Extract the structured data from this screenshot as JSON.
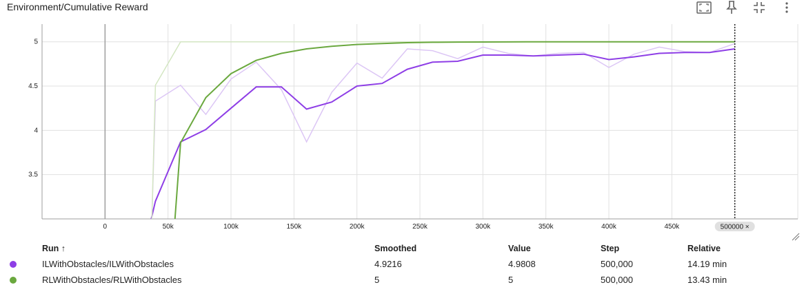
{
  "title": "Environment/Cumulative Reward",
  "icons": [
    "fit-domain-icon",
    "pin-icon",
    "collapse-icon",
    "more-vert-icon"
  ],
  "colors": {
    "series_il": "#8e3ee6",
    "series_il_raw": "#dcc6f5",
    "series_rl": "#6aa83e",
    "series_rl_raw": "#d3e6c2",
    "grid": "#e0e0e0"
  },
  "chart_data": {
    "type": "line",
    "xlim": [
      -50000,
      550000
    ],
    "ylim": [
      3,
      5.2
    ],
    "x_ticks": [
      "0",
      "50k",
      "100k",
      "150k",
      "200k",
      "250k",
      "300k",
      "350k",
      "400k",
      "450k"
    ],
    "y_ticks": [
      "3.5",
      "4",
      "4.5",
      "5"
    ],
    "grid": true,
    "hover_step_label": "500000 ×",
    "series": [
      {
        "name": "ILWithObstacles/ILWithObstacles",
        "smoothed": [
          [
            40000,
            3.2
          ],
          [
            60000,
            3.87
          ],
          [
            80000,
            4.01
          ],
          [
            100000,
            4.25
          ],
          [
            120000,
            4.49
          ],
          [
            140000,
            4.49
          ],
          [
            160000,
            4.24
          ],
          [
            180000,
            4.32
          ],
          [
            200000,
            4.5
          ],
          [
            220000,
            4.53
          ],
          [
            240000,
            4.69
          ],
          [
            260000,
            4.77
          ],
          [
            280000,
            4.78
          ],
          [
            300000,
            4.85
          ],
          [
            320000,
            4.85
          ],
          [
            340000,
            4.84
          ],
          [
            360000,
            4.85
          ],
          [
            380000,
            4.86
          ],
          [
            400000,
            4.8
          ],
          [
            420000,
            4.83
          ],
          [
            440000,
            4.87
          ],
          [
            460000,
            4.88
          ],
          [
            480000,
            4.88
          ],
          [
            500000,
            4.92
          ]
        ],
        "values": [
          [
            40000,
            4.33
          ],
          [
            60000,
            4.51
          ],
          [
            80000,
            4.18
          ],
          [
            100000,
            4.58
          ],
          [
            120000,
            4.77
          ],
          [
            140000,
            4.46
          ],
          [
            160000,
            3.87
          ],
          [
            180000,
            4.43
          ],
          [
            200000,
            4.76
          ],
          [
            220000,
            4.59
          ],
          [
            240000,
            4.92
          ],
          [
            260000,
            4.9
          ],
          [
            280000,
            4.81
          ],
          [
            300000,
            4.94
          ],
          [
            320000,
            4.87
          ],
          [
            340000,
            4.84
          ],
          [
            360000,
            4.87
          ],
          [
            380000,
            4.88
          ],
          [
            400000,
            4.71
          ],
          [
            420000,
            4.86
          ],
          [
            440000,
            4.94
          ],
          [
            460000,
            4.89
          ],
          [
            480000,
            4.88
          ],
          [
            500000,
            4.98
          ]
        ]
      },
      {
        "name": "RLWithObstacles/RLWithObstacles",
        "smoothed": [
          [
            60000,
            3.86
          ],
          [
            80000,
            4.37
          ],
          [
            100000,
            4.64
          ],
          [
            120000,
            4.79
          ],
          [
            140000,
            4.87
          ],
          [
            160000,
            4.92
          ],
          [
            180000,
            4.95
          ],
          [
            200000,
            4.97
          ],
          [
            220000,
            4.98
          ],
          [
            240000,
            4.99
          ],
          [
            260000,
            4.995
          ],
          [
            280000,
            4.997
          ],
          [
            300000,
            4.998
          ],
          [
            320000,
            4.999
          ],
          [
            340000,
            5
          ],
          [
            360000,
            5
          ],
          [
            380000,
            5
          ],
          [
            400000,
            5
          ],
          [
            420000,
            5
          ],
          [
            440000,
            5
          ],
          [
            460000,
            5
          ],
          [
            480000,
            5
          ],
          [
            500000,
            5
          ]
        ],
        "values": [
          [
            40000,
            4.51
          ],
          [
            60000,
            5
          ],
          [
            80000,
            5
          ],
          [
            100000,
            5
          ],
          [
            120000,
            5
          ],
          [
            140000,
            5
          ],
          [
            160000,
            5
          ],
          [
            180000,
            5
          ],
          [
            200000,
            5
          ],
          [
            220000,
            5
          ],
          [
            240000,
            5
          ],
          [
            260000,
            5
          ],
          [
            280000,
            5
          ],
          [
            300000,
            5
          ],
          [
            320000,
            5
          ],
          [
            340000,
            5
          ],
          [
            360000,
            5
          ],
          [
            380000,
            5
          ],
          [
            400000,
            5
          ],
          [
            420000,
            5
          ],
          [
            440000,
            5
          ],
          [
            460000,
            5
          ],
          [
            480000,
            5
          ],
          [
            500000,
            5
          ]
        ]
      }
    ]
  },
  "table": {
    "headers": {
      "run": "Run ↑",
      "smoothed": "Smoothed",
      "value": "Value",
      "step": "Step",
      "relative": "Relative"
    },
    "rows": [
      {
        "run": "ILWithObstacles/ILWithObstacles",
        "smoothed": "4.9216",
        "value": "4.9808",
        "step": "500,000",
        "relative": "14.19 min",
        "color": "#8e3ee6"
      },
      {
        "run": "RLWithObstacles/RLWithObstacles",
        "smoothed": "5",
        "value": "5",
        "step": "500,000",
        "relative": "13.43 min",
        "color": "#6aa83e"
      }
    ]
  }
}
